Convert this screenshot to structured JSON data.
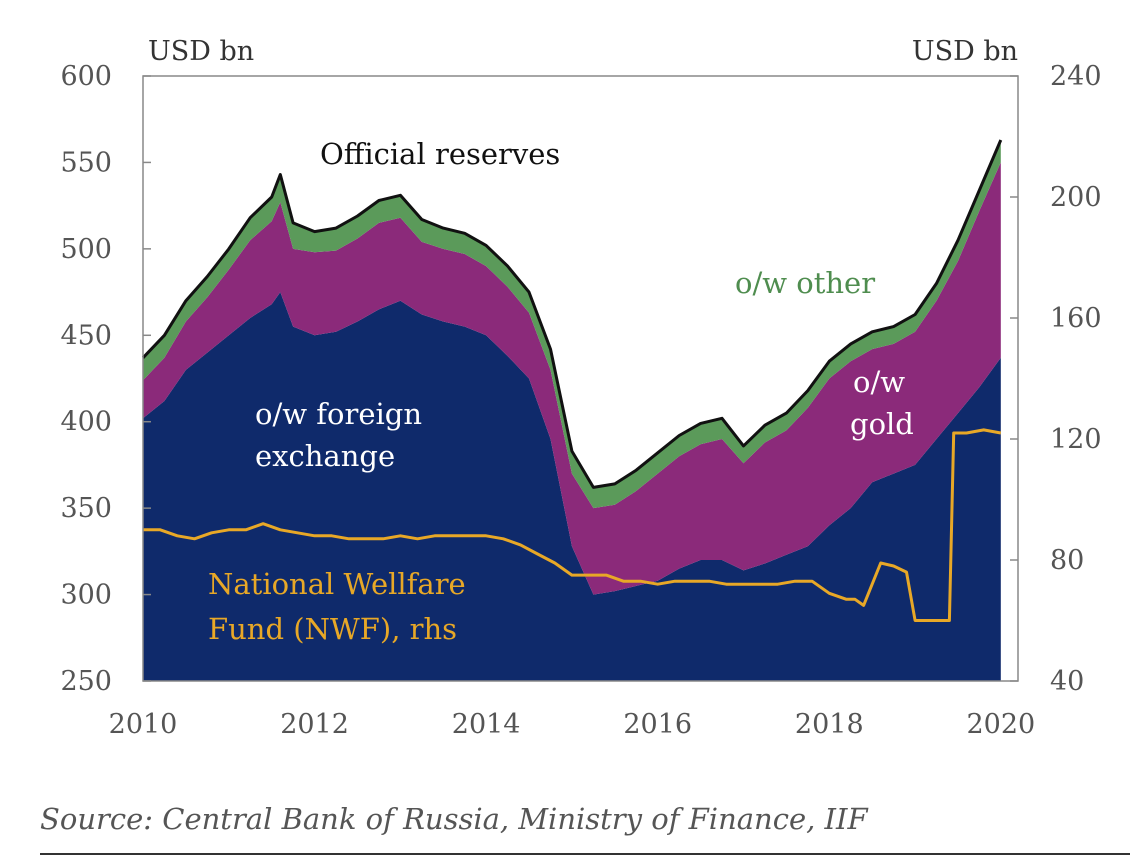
{
  "chart_data": {
    "type": "area",
    "y_left_unit": "USD bn",
    "y_right_unit": "USD bn",
    "ylim_left": [
      250,
      600
    ],
    "ylim_right": [
      40,
      240
    ],
    "yticks_left": [
      "600",
      "550",
      "500",
      "450",
      "400",
      "350",
      "300",
      "250"
    ],
    "yticks_right": [
      "240",
      "200",
      "160",
      "120",
      "80",
      "40"
    ],
    "xticks": [
      "2010",
      "2012",
      "2014",
      "2016",
      "2018",
      "2020"
    ],
    "xlim": [
      2010,
      2020.2
    ],
    "grid": false,
    "x": [
      2010.0,
      2010.25,
      2010.5,
      2010.75,
      2011.0,
      2011.25,
      2011.5,
      2011.6,
      2011.75,
      2012.0,
      2012.25,
      2012.5,
      2012.75,
      2013.0,
      2013.25,
      2013.5,
      2013.75,
      2014.0,
      2014.25,
      2014.5,
      2014.75,
      2015.0,
      2015.25,
      2015.5,
      2015.75,
      2016.0,
      2016.25,
      2016.5,
      2016.75,
      2017.0,
      2017.25,
      2017.5,
      2017.75,
      2018.0,
      2018.25,
      2018.5,
      2018.75,
      2019.0,
      2019.25,
      2019.5,
      2019.75,
      2020.0
    ],
    "series": [
      {
        "name": "o/w foreign exchange",
        "color": "#0f2a6b",
        "values": [
          402,
          412,
          430,
          440,
          450,
          460,
          468,
          475,
          455,
          450,
          452,
          458,
          465,
          470,
          462,
          458,
          455,
          450,
          438,
          425,
          390,
          328,
          300,
          302,
          305,
          308,
          315,
          320,
          320,
          314,
          318,
          323,
          328,
          340,
          350,
          365,
          370,
          375,
          390,
          405,
          420,
          437
        ]
      },
      {
        "name": "o/w gold",
        "color": "#8b2a7a",
        "values": [
          22,
          25,
          28,
          32,
          38,
          45,
          48,
          52,
          45,
          48,
          47,
          48,
          50,
          48,
          42,
          42,
          42,
          40,
          40,
          38,
          40,
          42,
          50,
          50,
          55,
          62,
          65,
          67,
          70,
          62,
          70,
          72,
          80,
          85,
          85,
          77,
          75,
          77,
          80,
          88,
          102,
          113
        ]
      },
      {
        "name": "o/w other",
        "color": "#5b9a5a",
        "values": [
          13,
          13,
          12,
          12,
          12,
          13,
          14,
          16,
          15,
          12,
          13,
          13,
          13,
          13,
          13,
          12,
          12,
          12,
          12,
          12,
          12,
          13,
          12,
          12,
          12,
          12,
          12,
          12,
          12,
          10,
          10,
          10,
          10,
          10,
          10,
          10,
          10,
          10,
          10,
          12,
          12,
          13
        ]
      },
      {
        "name": "Official reserves",
        "color": "#111111",
        "values": [
          437,
          450,
          470,
          484,
          500,
          518,
          530,
          543,
          515,
          510,
          512,
          519,
          528,
          531,
          517,
          512,
          509,
          502,
          490,
          475,
          442,
          383,
          362,
          364,
          372,
          382,
          392,
          399,
          402,
          386,
          398,
          405,
          418,
          435,
          445,
          452,
          455,
          462,
          480,
          505,
          534,
          563
        ]
      },
      {
        "name": "National Wellfare Fund (NWF), rhs",
        "axis": "right",
        "color": "#e8a827",
        "x": [
          2010.0,
          2010.2,
          2010.4,
          2010.6,
          2010.8,
          2011.0,
          2011.2,
          2011.4,
          2011.6,
          2011.8,
          2012.0,
          2012.2,
          2012.4,
          2012.6,
          2012.8,
          2013.0,
          2013.2,
          2013.4,
          2013.6,
          2013.8,
          2014.0,
          2014.2,
          2014.4,
          2014.6,
          2014.8,
          2015.0,
          2015.2,
          2015.4,
          2015.6,
          2015.8,
          2016.0,
          2016.2,
          2016.4,
          2016.6,
          2016.8,
          2017.0,
          2017.2,
          2017.4,
          2017.6,
          2017.8,
          2018.0,
          2018.2,
          2018.3,
          2018.4,
          2018.6,
          2018.75,
          2018.9,
          2019.0,
          2019.2,
          2019.4,
          2019.45,
          2019.6,
          2019.8,
          2020.0
        ],
        "values": [
          90,
          90,
          88,
          87,
          89,
          90,
          90,
          92,
          90,
          89,
          88,
          88,
          87,
          87,
          87,
          88,
          87,
          88,
          88,
          88,
          88,
          87,
          85,
          82,
          79,
          75,
          75,
          75,
          73,
          73,
          72,
          73,
          73,
          73,
          72,
          72,
          72,
          72,
          73,
          73,
          69,
          67,
          67,
          65,
          79,
          78,
          76,
          60,
          60,
          60,
          122,
          122,
          123,
          122
        ]
      }
    ],
    "annotations": [
      "Official reserves",
      "o/w other",
      "o/w gold",
      "o/w foreign exchange",
      "National Wellfare Fund (NWF), rhs"
    ]
  },
  "labels": {
    "official_reserves": "Official reserves",
    "other": "o/w other",
    "gold_1": "o/w",
    "gold_2": "gold",
    "fx_1": "o/w foreign",
    "fx_2": "exchange",
    "nwf_1": "National Wellfare",
    "nwf_2": "Fund (NWF), rhs"
  },
  "source": "Source: Central Bank of Russia, Ministry of Finance, IIF"
}
